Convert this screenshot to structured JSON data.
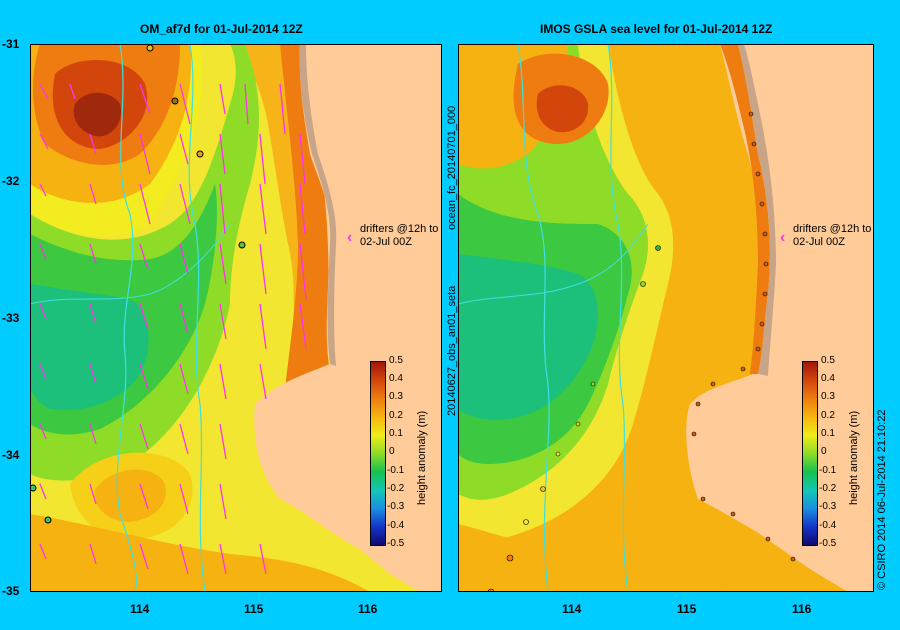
{
  "left_panel": {
    "title": "OM_af7d for 01-Jul-2014 12Z",
    "drifter_note_line1": "drifters @12h to",
    "drifter_note_line2": "02-Jul 00Z",
    "arrow_color": "#ff33ee"
  },
  "right_panel": {
    "title": "IMOS GSLA sea level  for 01-Jul-2014 12Z",
    "drifter_note_line1": "drifters @12h to",
    "drifter_note_line2": "02-Jul 00Z",
    "side_label_top": "ocean_fc_20140701_000",
    "side_label_bottom": "20140627_obs_an01_seta"
  },
  "colorbar": {
    "title": "height anomaly (m)",
    "labels": [
      "0.5",
      "0.4",
      "0.3",
      "0.2",
      "0.1",
      "0",
      "-0.1",
      "-0.2",
      "-0.3",
      "-0.4",
      "-0.5"
    ]
  },
  "axes": {
    "y_labels": [
      "-31",
      "-32",
      "-33",
      "-34",
      "-35"
    ],
    "x_labels": [
      "114",
      "115",
      "116"
    ]
  },
  "credit": "© CSIRO 2014   06-Jul-2014 21:10:22",
  "colors": {
    "background": "#00ccff",
    "land": "#ffcc99",
    "coast_shade": "#c8a488",
    "bathymetry": "#40e0e0"
  }
}
